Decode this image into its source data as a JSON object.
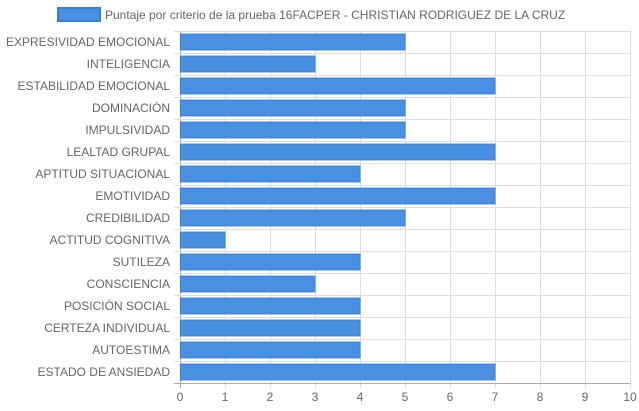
{
  "chart_data": {
    "type": "bar",
    "orientation": "horizontal",
    "categories": [
      "EXPRESIVIDAD EMOCIONAL",
      "INTELIGENCIA",
      "ESTABILIDAD EMOCIONAL",
      "DOMINACIÓN",
      "IMPULSIVIDAD",
      "LEALTAD GRUPAL",
      "APTITUD SITUACIONAL",
      "EMOTIVIDAD",
      "CREDIBILIDAD",
      "ACTITUD COGNITIVA",
      "SUTILEZA",
      "CONSCIENCIA",
      "POSICIÓN SOCIAL",
      "CERTEZA INDIVIDUAL",
      "AUTOESTIMA",
      "ESTADO DE ANSIEDAD"
    ],
    "series": [
      {
        "name": "Puntaje por criterio de la prueba 16FACPER - CHRISTIAN RODRIGUEZ DE LA CRUZ",
        "values": [
          5,
          3,
          7,
          5,
          5,
          7,
          4,
          7,
          5,
          1,
          4,
          3,
          4,
          4,
          4,
          7
        ],
        "color": "#4a90e2",
        "border_color": "#3a7fd6"
      }
    ],
    "xlim": [
      0,
      10
    ],
    "x_ticks": [
      "0",
      "1",
      "2",
      "3",
      "4",
      "5",
      "6",
      "7",
      "8",
      "9",
      "10"
    ],
    "grid": true,
    "legend": "top",
    "grid_color": "#dddddd",
    "axis_color": "#aaaaaa"
  }
}
